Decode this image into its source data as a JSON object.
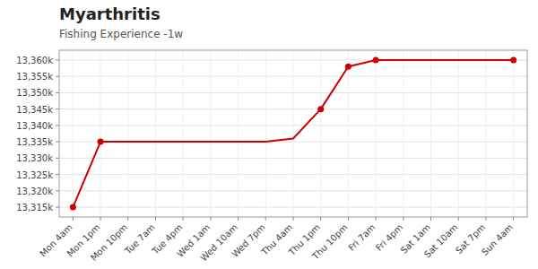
{
  "chart_data": {
    "type": "line",
    "title": "Myarthritis",
    "subtitle": "Fishing Experience -1w",
    "categories": [
      "Mon 4am",
      "Mon 1pm",
      "Mon 10pm",
      "Tue 7am",
      "Tue 4pm",
      "Wed 1am",
      "Wed 10am",
      "Wed 7pm",
      "Thu 4am",
      "Thu 1pm",
      "Thu 10pm",
      "Fri 7am",
      "Fri 4pm",
      "Sat 1am",
      "Sat 10am",
      "Sat 7pm",
      "Sun 4am"
    ],
    "series": [
      {
        "type": "line",
        "color": "#cc0000",
        "values": [
          13315,
          13335,
          13335,
          13335,
          13335,
          13335,
          13335,
          13335,
          13336,
          13345,
          13358,
          13360,
          13360,
          13360,
          13360,
          13360,
          13360
        ]
      },
      {
        "type": "scatter",
        "marker": "circle",
        "color": "#cc0000",
        "values": [
          13315,
          13335,
          null,
          null,
          null,
          null,
          null,
          null,
          null,
          13345,
          13358,
          13360,
          null,
          null,
          null,
          null,
          13360
        ]
      }
    ],
    "ylim": [
      13312,
      13363
    ],
    "yticks": [
      {
        "value": 13315,
        "label": "13,315k"
      },
      {
        "value": 13320,
        "label": "13,320k"
      },
      {
        "value": 13325,
        "label": "13,325k"
      },
      {
        "value": 13330,
        "label": "13,330k"
      },
      {
        "value": 13335,
        "label": "13,335k"
      },
      {
        "value": 13340,
        "label": "13,340k"
      },
      {
        "value": 13345,
        "label": "13,345k"
      },
      {
        "value": 13350,
        "label": "13,350k"
      },
      {
        "value": 13355,
        "label": "13,355k"
      },
      {
        "value": 13360,
        "label": "13,360k"
      }
    ],
    "grid": true
  }
}
